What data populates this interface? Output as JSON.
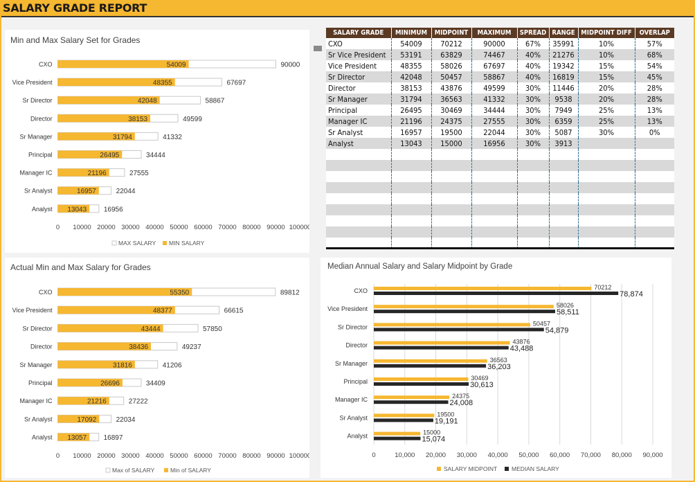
{
  "header": {
    "title": "SALARY GRADE REPORT"
  },
  "table": {
    "columns": [
      "SALARY GRADE",
      "MINIMUM",
      "MIDPOINT",
      "MAXIMUM",
      "SPREAD",
      "RANGE",
      "MIDPOINT DIFF",
      "OVERLAP"
    ],
    "rows": [
      [
        "CXO",
        "54009",
        "70212",
        "90000",
        "67%",
        "35991",
        "10%",
        "57%"
      ],
      [
        "Sr Vice President",
        "53191",
        "63829",
        "74467",
        "40%",
        "21276",
        "10%",
        "68%"
      ],
      [
        "Vice President",
        "48355",
        "58026",
        "67697",
        "40%",
        "19342",
        "15%",
        "54%"
      ],
      [
        "Sr Director",
        "42048",
        "50457",
        "58867",
        "40%",
        "16819",
        "15%",
        "45%"
      ],
      [
        "Director",
        "38153",
        "43876",
        "49599",
        "30%",
        "11446",
        "20%",
        "28%"
      ],
      [
        "Sr Manager",
        "31794",
        "36563",
        "41332",
        "30%",
        "9538",
        "20%",
        "28%"
      ],
      [
        "Principal",
        "26495",
        "30469",
        "34444",
        "30%",
        "7949",
        "25%",
        "13%"
      ],
      [
        "Manager IC",
        "21196",
        "24375",
        "27555",
        "30%",
        "6359",
        "25%",
        "13%"
      ],
      [
        "Sr Analyst",
        "16957",
        "19500",
        "22044",
        "30%",
        "5087",
        "30%",
        "0%"
      ],
      [
        "Analyst",
        "13043",
        "15000",
        "16956",
        "30%",
        "3913",
        "",
        ""
      ]
    ],
    "empty_rows": 9
  },
  "chart_data": [
    {
      "type": "bar",
      "title": "Min and Max Salary Set for Grades",
      "categories": [
        "CXO",
        "Vice President",
        "Sr Director",
        "Director",
        "Sr Manager",
        "Principal",
        "Manager IC",
        "Sr Analyst",
        "Analyst"
      ],
      "series": [
        {
          "name": "MIN SALARY",
          "values": [
            54009,
            48355,
            42048,
            38153,
            31794,
            26495,
            21196,
            16957,
            13043
          ]
        },
        {
          "name": "MAX SALARY",
          "values": [
            90000,
            67697,
            58867,
            49599,
            41332,
            34444,
            27555,
            22044,
            16956
          ]
        }
      ],
      "xlim": [
        0,
        100000
      ],
      "ticks": [
        0,
        10000,
        20000,
        30000,
        40000,
        50000,
        60000,
        70000,
        80000,
        90000,
        100000
      ],
      "legend": [
        "MAX SALARY",
        "MIN SALARY"
      ],
      "legend_position": "bottom"
    },
    {
      "type": "bar",
      "title": "Actual Min and Max Salary for Grades",
      "categories": [
        "CXO",
        "Vice President",
        "Sr Director",
        "Director",
        "Sr Manager",
        "Principal",
        "Manager IC",
        "Sr Analyst",
        "Analyst"
      ],
      "series": [
        {
          "name": "Min of SALARY",
          "values": [
            55350,
            48377,
            43444,
            38436,
            31816,
            26696,
            21216,
            17092,
            13057
          ]
        },
        {
          "name": "Max of SALARY",
          "values": [
            89812,
            66615,
            57850,
            49237,
            41206,
            34409,
            27222,
            22034,
            16897
          ]
        }
      ],
      "xlim": [
        0,
        100000
      ],
      "ticks": [
        0,
        10000,
        20000,
        30000,
        40000,
        50000,
        60000,
        70000,
        80000,
        90000,
        100000
      ],
      "legend": [
        "Max of SALARY",
        "Min of SALARY"
      ],
      "legend_position": "bottom"
    },
    {
      "type": "bar",
      "title": "Median Annual Salary and Salary Midpoint by Grade",
      "categories": [
        "CXO",
        "Vice President",
        "Sr Director",
        "Director",
        "Sr Manager",
        "Principal",
        "Manager IC",
        "Sr Analyst",
        "Analyst"
      ],
      "series": [
        {
          "name": "SALARY MIDPOINT",
          "values": [
            70212,
            58026,
            50457,
            43876,
            36563,
            30469,
            24375,
            19500,
            15000
          ],
          "labels": [
            "70212",
            "58026",
            "50457",
            "43876",
            "36563",
            "30469",
            "24375",
            "19500",
            "15000"
          ]
        },
        {
          "name": "MEDIAN SALARY",
          "values": [
            78874,
            58511,
            54879,
            43488,
            36203,
            30613,
            24008,
            19191,
            15074
          ],
          "labels": [
            "78,874",
            "58,511",
            "54,879",
            "43,488",
            "36,203",
            "30,613",
            "24,008",
            "19,191",
            "15,074"
          ]
        }
      ],
      "xlim": [
        0,
        90000
      ],
      "ticks": [
        "0",
        "10,000",
        "20,000",
        "30,000",
        "40,000",
        "50,000",
        "60,000",
        "70,000",
        "80,000",
        "90,000"
      ],
      "grid": true,
      "legend": [
        "SALARY MIDPOINT",
        "MEDIAN SALARY"
      ],
      "legend_position": "bottom"
    }
  ],
  "colors": {
    "accent": "#f6b731",
    "dark": "#262626",
    "table_header": "#5b3a24",
    "band": "#d9d9d9",
    "bar_outline": "#c8c8c8"
  }
}
